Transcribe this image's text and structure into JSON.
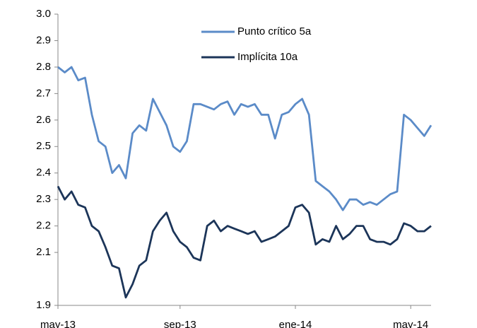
{
  "chart_data": {
    "type": "line",
    "categories": [
      "may-13",
      null,
      null,
      null,
      null,
      null,
      null,
      null,
      null,
      null,
      null,
      null,
      null,
      null,
      null,
      null,
      null,
      null,
      "sep-13",
      null,
      null,
      null,
      null,
      null,
      null,
      null,
      null,
      null,
      null,
      null,
      null,
      null,
      null,
      null,
      null,
      "ene-14",
      null,
      null,
      null,
      null,
      null,
      null,
      null,
      null,
      null,
      null,
      null,
      null,
      null,
      null,
      null,
      null,
      "may-14",
      null,
      null,
      null
    ],
    "series": [
      {
        "name": "Punto crítico 5a",
        "color": "#5b8bc8",
        "values": [
          2.8,
          2.78,
          2.8,
          2.75,
          2.76,
          2.62,
          2.52,
          2.5,
          2.4,
          2.43,
          2.38,
          2.55,
          2.58,
          2.56,
          2.68,
          2.63,
          2.58,
          2.5,
          2.48,
          2.52,
          2.66,
          2.66,
          2.65,
          2.64,
          2.66,
          2.67,
          2.62,
          2.66,
          2.65,
          2.66,
          2.62,
          2.62,
          2.53,
          2.62,
          2.63,
          2.66,
          2.68,
          2.62,
          2.37,
          2.35,
          2.33,
          2.3,
          2.26,
          2.3,
          2.3,
          2.28,
          2.29,
          2.28,
          2.3,
          2.32,
          2.33,
          2.62,
          2.6,
          2.57,
          2.54,
          2.58
        ]
      },
      {
        "name": "Implícita 10a",
        "color": "#1c3559",
        "values": [
          2.35,
          2.3,
          2.33,
          2.28,
          2.27,
          2.2,
          2.18,
          2.12,
          2.05,
          2.04,
          1.93,
          1.98,
          2.05,
          2.07,
          2.18,
          2.22,
          2.25,
          2.18,
          2.14,
          2.12,
          2.08,
          2.07,
          2.2,
          2.22,
          2.18,
          2.2,
          2.19,
          2.18,
          2.17,
          2.18,
          2.14,
          2.15,
          2.16,
          2.18,
          2.2,
          2.27,
          2.28,
          2.25,
          2.13,
          2.15,
          2.14,
          2.2,
          2.15,
          2.17,
          2.2,
          2.2,
          2.15,
          2.14,
          2.14,
          2.13,
          2.15,
          2.21,
          2.2,
          2.18,
          2.18,
          2.2
        ]
      }
    ],
    "ylim": [
      1.9,
      3.0
    ],
    "yticks": [
      {
        "value": 1.9,
        "label": "1.9"
      },
      2.1,
      2.2,
      2.3,
      2.4,
      2.5,
      2.6,
      2.7,
      2.8,
      2.9,
      {
        "value": 3.0,
        "label": "3.0"
      }
    ],
    "grid": false,
    "legend": "top"
  }
}
